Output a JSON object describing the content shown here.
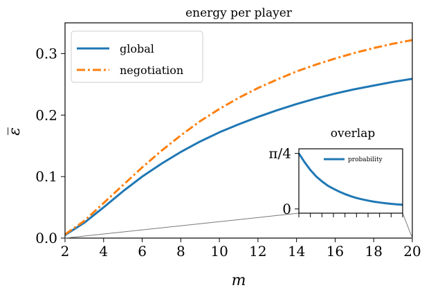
{
  "chart_data": [
    {
      "type": "line",
      "title": "energy per player",
      "xlabel": "m",
      "ylabel": "ε̅",
      "xlim": [
        2,
        20
      ],
      "ylim": [
        0,
        0.35
      ],
      "xticks": [
        "2",
        "4",
        "6",
        "8",
        "10",
        "12",
        "14",
        "16",
        "18",
        "20"
      ],
      "xtick_values": [
        2,
        4,
        6,
        8,
        10,
        12,
        14,
        16,
        18,
        20
      ],
      "yticks": [
        "0.0",
        "0.1",
        "0.2",
        "0.3"
      ],
      "ytick_values": [
        0.0,
        0.1,
        0.2,
        0.3
      ],
      "grid": false,
      "legend_position": "upper-left",
      "series": [
        {
          "name": "global",
          "color": "#1f77b4",
          "style": "solid",
          "x": [
            2,
            3,
            4,
            5,
            6,
            7,
            8,
            9,
            10,
            11,
            12,
            13,
            14,
            15,
            16,
            17,
            18,
            19,
            20
          ],
          "y": [
            0.005,
            0.025,
            0.05,
            0.076,
            0.1,
            0.121,
            0.14,
            0.157,
            0.172,
            0.185,
            0.197,
            0.208,
            0.218,
            0.227,
            0.235,
            0.242,
            0.248,
            0.254,
            0.259
          ]
        },
        {
          "name": "negotiation",
          "color": "#ff7f0e",
          "style": "dashdot",
          "x": [
            2,
            3,
            4,
            5,
            6,
            7,
            8,
            9,
            10,
            11,
            12,
            13,
            14,
            15,
            16,
            17,
            18,
            19,
            20
          ],
          "y": [
            0.006,
            0.028,
            0.057,
            0.086,
            0.115,
            0.142,
            0.167,
            0.19,
            0.21,
            0.228,
            0.244,
            0.258,
            0.271,
            0.282,
            0.292,
            0.301,
            0.309,
            0.316,
            0.322
          ]
        }
      ]
    },
    {
      "type": "line",
      "title": "overlap",
      "xlim": [
        2,
        20
      ],
      "ylim": [
        -0.06,
        0.85
      ],
      "xticks": [
        "",
        "",
        "",
        "",
        "",
        "",
        "",
        "",
        "",
        ""
      ],
      "xtick_values": [
        2,
        4,
        6,
        8,
        10,
        12,
        14,
        16,
        18,
        20
      ],
      "yticks": [
        "0",
        "π/4"
      ],
      "ytick_values": [
        0,
        0.785
      ],
      "grid": false,
      "legend_position": "upper-right",
      "series": [
        {
          "name": "probability",
          "color": "#1f77b4",
          "style": "solid",
          "x": [
            2,
            3,
            4,
            5,
            6,
            7,
            8,
            9,
            10,
            11,
            12,
            13,
            14,
            15,
            16,
            17,
            18,
            19,
            20
          ],
          "y": [
            0.785,
            0.66,
            0.55,
            0.46,
            0.39,
            0.33,
            0.285,
            0.245,
            0.21,
            0.18,
            0.155,
            0.135,
            0.118,
            0.103,
            0.091,
            0.081,
            0.072,
            0.065,
            0.059
          ]
        }
      ]
    }
  ]
}
